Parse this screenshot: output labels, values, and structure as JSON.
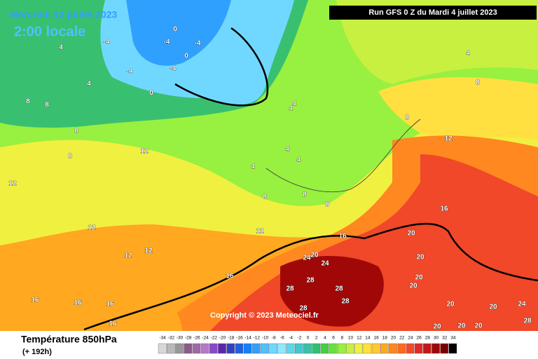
{
  "header": {
    "date": "Mercredi 12 juillet 2023",
    "time": "2:00 locale",
    "run": "Run GFS 0 Z du Mardi 4 juillet 2023"
  },
  "copyright": "Copyright © 2023 Meteociel.fr",
  "footer": {
    "title": "Température 850hPa",
    "subtitle": "(+ 192h)"
  },
  "labels": [
    "4",
    "-4",
    "-4",
    "-4",
    "-4",
    "0",
    "0",
    "4",
    "-4",
    "0",
    "8",
    "8",
    "8",
    "4",
    "4",
    "4",
    "4",
    "4",
    "8",
    "8",
    "8",
    "8",
    "4",
    "8",
    "8",
    "12",
    "12",
    "12",
    "12",
    "12",
    "12",
    "16",
    "16",
    "16",
    "16",
    "16",
    "16",
    "16",
    "20",
    "20",
    "24",
    "24",
    "28",
    "28",
    "28",
    "28",
    "28",
    "20",
    "20",
    "20",
    "20",
    "20",
    "20",
    "20",
    "20",
    "24",
    "28",
    "12"
  ],
  "legend": {
    "ticks": [
      -34,
      -32,
      -30,
      -28,
      -26,
      -24,
      -22,
      -20,
      -18,
      -16,
      -14,
      -12,
      -10,
      -8,
      -6,
      -4,
      -2,
      0,
      2,
      4,
      6,
      8,
      10,
      12,
      14,
      16,
      18,
      20,
      22,
      24,
      26,
      28,
      30,
      32,
      34
    ],
    "colors": [
      "#d8d8d8",
      "#b8b8b8",
      "#989898",
      "#8a5a8a",
      "#a068a8",
      "#b478c8",
      "#8848c8",
      "#5828a8",
      "#3040c0",
      "#2060e0",
      "#1080ff",
      "#30a0ff",
      "#50c0ff",
      "#70d8ff",
      "#90e8ff",
      "#5ad8e8",
      "#40c8d0",
      "#38c0a8",
      "#30c070",
      "#40d040",
      "#68e040",
      "#98f040",
      "#c8f040",
      "#f0f040",
      "#ffe040",
      "#ffc830",
      "#ffa820",
      "#ff8820",
      "#ff6820",
      "#f04828",
      "#e02828",
      "#c01818",
      "#a00808",
      "#780000",
      "#000000"
    ]
  }
}
